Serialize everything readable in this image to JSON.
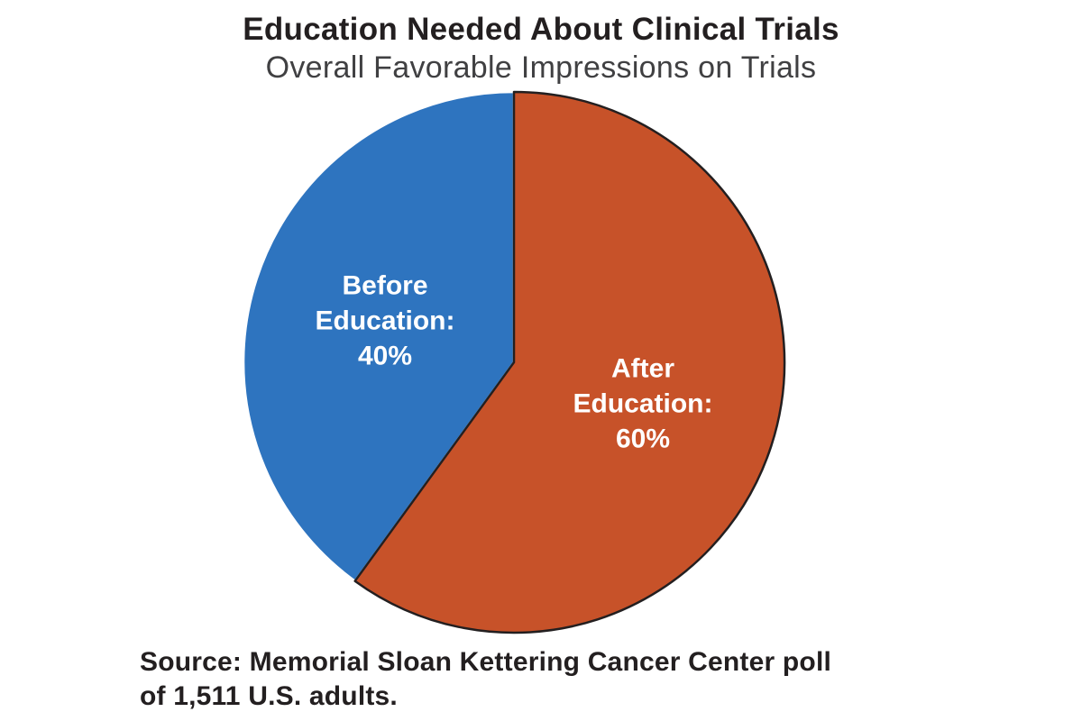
{
  "page": {
    "background_color": "#FFFFFF"
  },
  "header": {
    "title": "Education Needed About Clinical Trials",
    "subtitle": "Overall Favorable Impressions on Trials",
    "title_color": "#231F20",
    "subtitle_color": "#404042"
  },
  "chart_data": {
    "type": "pie",
    "title": "Education Needed About Clinical Trials",
    "subtitle": "Overall Favorable Impressions on Trials",
    "unit": "%",
    "direction": "clockwise",
    "start_angle_deg_from_top": 0,
    "legend_position": "none",
    "slices": [
      {
        "name": "After Education",
        "value": 60,
        "label_lines": [
          "After",
          "Education:",
          "60%"
        ],
        "color": "#C75229",
        "stroke_color": "#231F20",
        "label_color": "#FFFFFF"
      },
      {
        "name": "Before Education",
        "value": 40,
        "label_lines": [
          "Before",
          "Education:",
          "40%"
        ],
        "color": "#2E74BF",
        "stroke_color": "#FFFFFF",
        "label_color": "#FFFFFF"
      }
    ]
  },
  "source": {
    "line1": "Source: Memorial Sloan Kettering Cancer Center poll",
    "line2": "of 1,511 U.S. adults.",
    "color": "#231F20"
  }
}
